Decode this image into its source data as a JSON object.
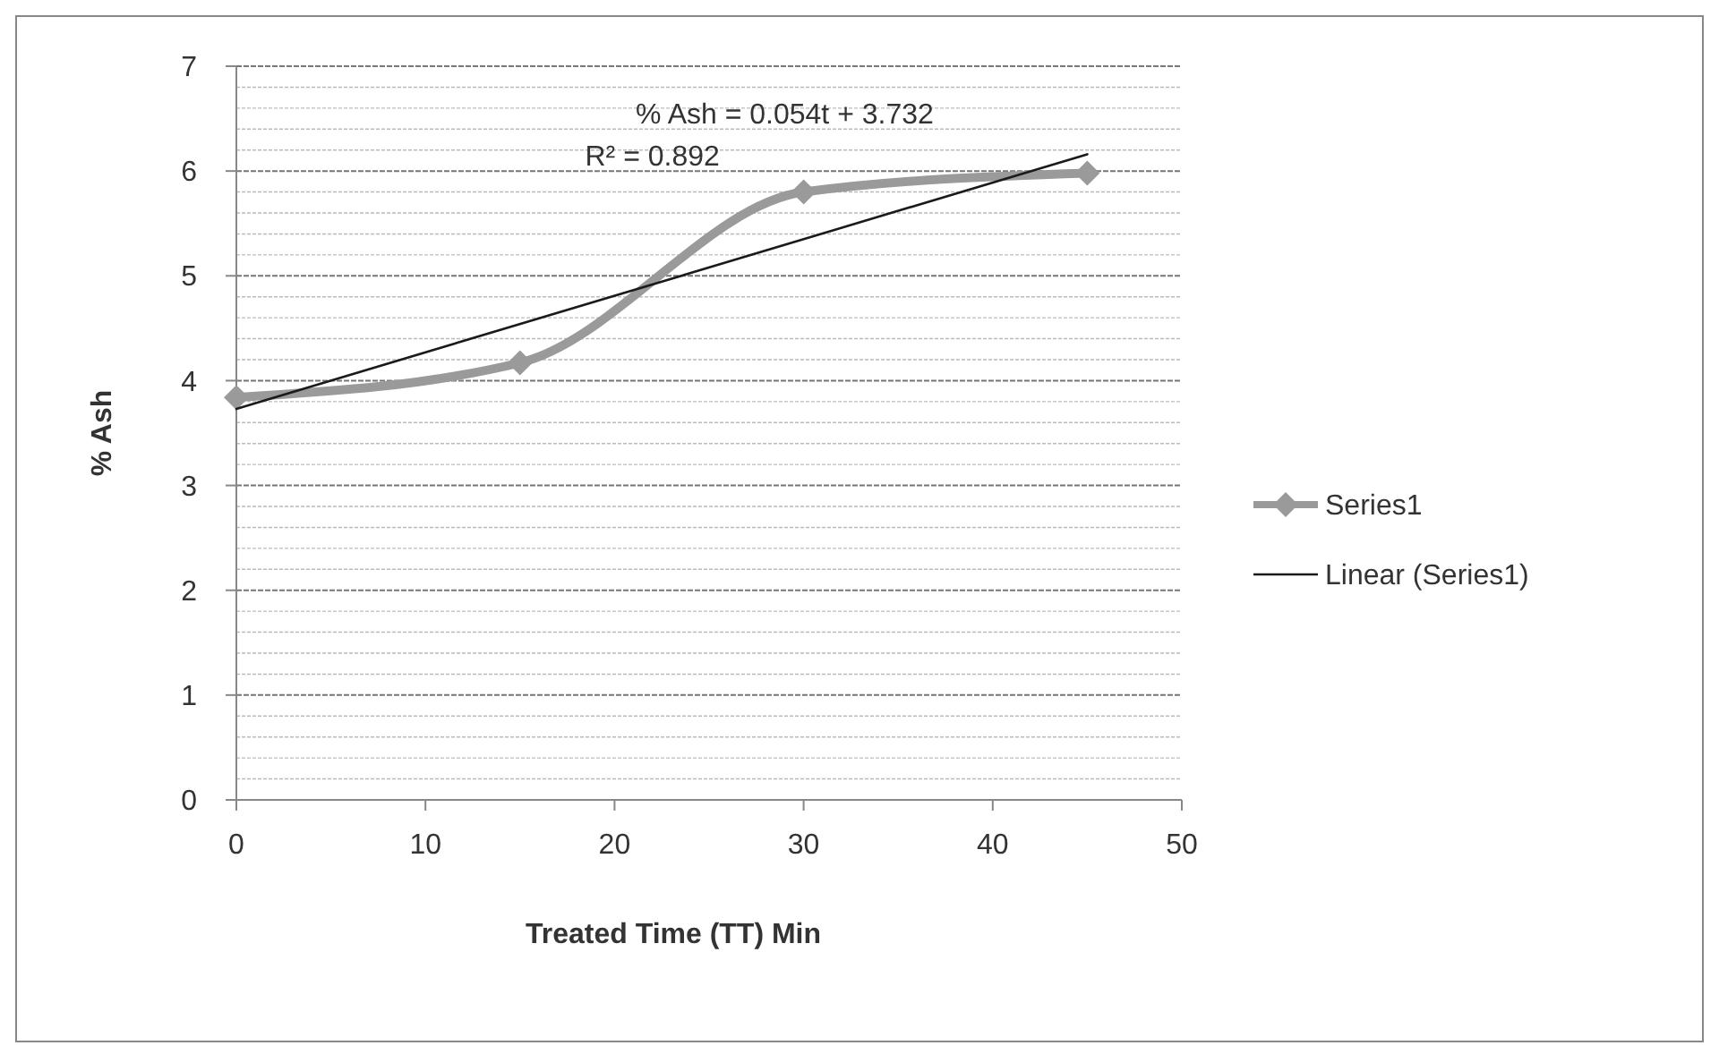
{
  "chart_data": {
    "type": "line",
    "xlabel": "Treated Time (TT) Min",
    "ylabel": "% Ash",
    "xlim": [
      0,
      50
    ],
    "xticks": [
      0,
      10,
      20,
      30,
      40,
      50
    ],
    "ylim": [
      0,
      7
    ],
    "yticks": [
      0,
      {
        "value": 0.2,
        "label": null
      },
      {
        "value": 0.4,
        "label": null
      },
      {
        "value": 0.6,
        "label": null
      },
      {
        "value": 0.8,
        "label": null
      },
      1,
      {
        "value": 1.2,
        "label": null
      },
      {
        "value": 1.4,
        "label": null
      },
      {
        "value": 1.6,
        "label": null
      },
      {
        "value": 1.8,
        "label": null
      },
      2,
      {
        "value": 2.2,
        "label": null
      },
      {
        "value": 2.4,
        "label": null
      },
      {
        "value": 2.6,
        "label": null
      },
      {
        "value": 2.8,
        "label": null
      },
      3,
      {
        "value": 3.2,
        "label": null
      },
      {
        "value": 3.4,
        "label": null
      },
      {
        "value": 3.6,
        "label": null
      },
      {
        "value": 3.8,
        "label": null
      },
      4,
      {
        "value": 4.2,
        "label": null
      },
      {
        "value": 4.4,
        "label": null
      },
      {
        "value": 4.6,
        "label": null
      },
      {
        "value": 4.8,
        "label": null
      },
      5,
      {
        "value": 5.2,
        "label": null
      },
      {
        "value": 5.4,
        "label": null
      },
      {
        "value": 5.6,
        "label": null
      },
      {
        "value": 5.8,
        "label": null
      },
      6,
      {
        "value": 6.2,
        "label": null
      },
      {
        "value": 6.4,
        "label": null
      },
      {
        "value": 6.6,
        "label": null
      },
      {
        "value": 6.8,
        "label": null
      },
      7
    ],
    "grid": "y",
    "legend": "right",
    "series": [
      {
        "name": "Series1",
        "color": "#9a9a9a",
        "marker": "diamond",
        "x": [
          0,
          15,
          30,
          45
        ],
        "values": [
          3.84,
          4.17,
          5.8,
          5.98
        ]
      },
      {
        "name": "Linear (Series1)",
        "color": "#1a1a1a",
        "marker": "none",
        "x": [
          0,
          45
        ],
        "values": [
          3.73,
          6.16
        ]
      }
    ],
    "annotations": [
      "% Ash = 0.054t + 3.732",
      "R² = 0.892"
    ]
  }
}
